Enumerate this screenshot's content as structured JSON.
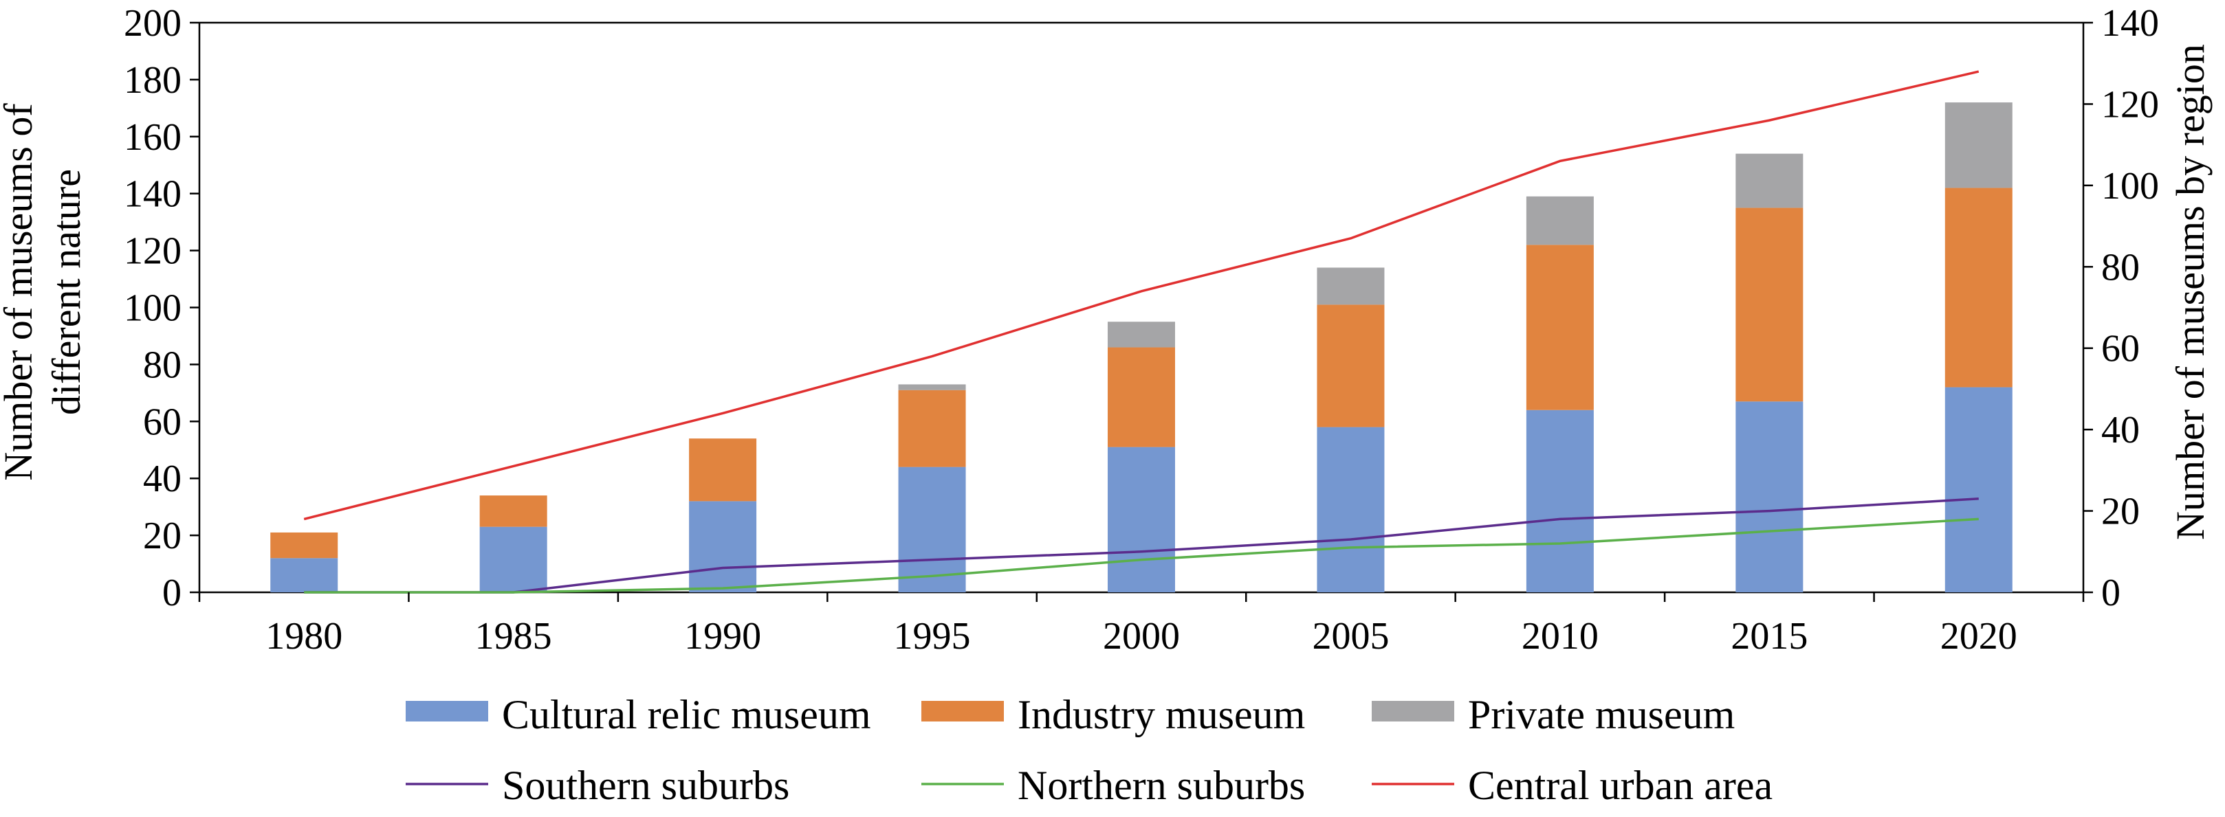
{
  "chart_data": {
    "type": "bar",
    "stacked": true,
    "categories": [
      "1980",
      "1985",
      "1990",
      "1995",
      "2000",
      "2005",
      "2010",
      "2015",
      "2020"
    ],
    "series": [
      {
        "name": "Cultural relic museum",
        "axis": "left",
        "kind": "bar",
        "color": "#7597D0",
        "values": [
          12,
          23,
          32,
          44,
          51,
          58,
          64,
          67,
          72
        ]
      },
      {
        "name": "Industry museum",
        "axis": "left",
        "kind": "bar",
        "color": "#E1843F",
        "values": [
          9,
          11,
          22,
          27,
          35,
          43,
          58,
          68,
          70
        ]
      },
      {
        "name": "Private museum",
        "axis": "left",
        "kind": "bar",
        "color": "#A5A5A7",
        "values": [
          0,
          0,
          0,
          2,
          9,
          13,
          17,
          19,
          30
        ]
      },
      {
        "name": "Southern suburbs",
        "axis": "right",
        "kind": "line",
        "color": "#5B2C8C",
        "values": [
          0,
          0,
          6,
          8,
          10,
          13,
          18,
          20,
          23
        ]
      },
      {
        "name": "Northern suburbs",
        "axis": "right",
        "kind": "line",
        "color": "#5BB04A",
        "values": [
          0,
          0,
          1,
          4,
          8,
          11,
          12,
          15,
          18
        ]
      },
      {
        "name": "Central urban area",
        "axis": "right",
        "kind": "line",
        "color": "#E03030",
        "values": [
          18,
          31,
          44,
          58,
          74,
          87,
          106,
          116,
          128
        ]
      }
    ],
    "ylabel_left": "Number of museums of different nature",
    "ylabel_left_lines": [
      "Number of museums of",
      "different nature"
    ],
    "ylabel_right": "Number of museums by region",
    "xlabel": "",
    "ylim_left": [
      0,
      200
    ],
    "ylim_right": [
      0,
      140
    ],
    "yticks_left": [
      0,
      20,
      40,
      60,
      80,
      100,
      120,
      140,
      160,
      180,
      200
    ],
    "yticks_right": [
      0,
      20,
      40,
      60,
      80,
      100,
      120,
      140
    ],
    "grid": false,
    "legend_position": "bottom"
  }
}
